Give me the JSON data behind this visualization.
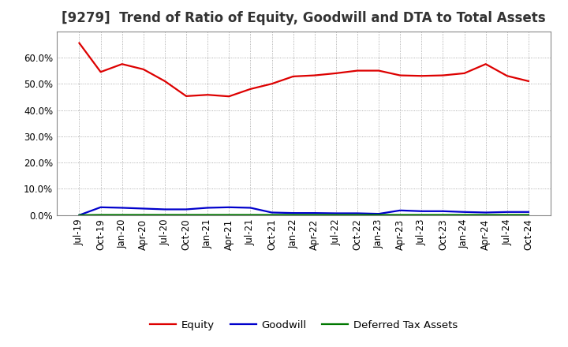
{
  "title": "[9279]  Trend of Ratio of Equity, Goodwill and DTA to Total Assets",
  "x_labels": [
    "Jul-19",
    "Oct-19",
    "Jan-20",
    "Apr-20",
    "Jul-20",
    "Oct-20",
    "Jan-21",
    "Apr-21",
    "Jul-21",
    "Oct-21",
    "Jan-22",
    "Apr-22",
    "Jul-22",
    "Oct-22",
    "Jan-23",
    "Apr-23",
    "Jul-23",
    "Oct-23",
    "Jan-24",
    "Apr-24",
    "Jul-24",
    "Oct-24"
  ],
  "equity": [
    0.655,
    0.545,
    0.575,
    0.555,
    0.51,
    0.453,
    0.458,
    0.452,
    0.48,
    0.5,
    0.528,
    0.532,
    0.54,
    0.55,
    0.55,
    0.532,
    0.53,
    0.532,
    0.54,
    0.575,
    0.53,
    0.51
  ],
  "goodwill": [
    0.0,
    0.03,
    0.028,
    0.025,
    0.022,
    0.022,
    0.028,
    0.03,
    0.028,
    0.01,
    0.008,
    0.008,
    0.007,
    0.007,
    0.005,
    0.018,
    0.015,
    0.015,
    0.012,
    0.01,
    0.012,
    0.012
  ],
  "dta": [
    0.0,
    0.001,
    0.001,
    0.001,
    0.001,
    0.001,
    0.001,
    0.001,
    0.001,
    0.001,
    0.001,
    0.001,
    0.001,
    0.001,
    0.001,
    0.001,
    0.001,
    0.001,
    0.001,
    0.001,
    0.001,
    0.001
  ],
  "equity_color": "#dd0000",
  "goodwill_color": "#0000cc",
  "dta_color": "#007700",
  "background_color": "#ffffff",
  "grid_color": "#999999",
  "ylim": [
    0.0,
    0.7
  ],
  "yticks": [
    0.0,
    0.1,
    0.2,
    0.3,
    0.4,
    0.5,
    0.6
  ],
  "legend_labels": [
    "Equity",
    "Goodwill",
    "Deferred Tax Assets"
  ],
  "title_fontsize": 12,
  "tick_fontsize": 8.5,
  "legend_fontsize": 9.5
}
